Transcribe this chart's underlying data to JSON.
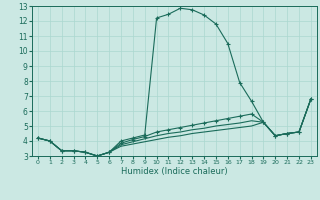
{
  "xlabel": "Humidex (Indice chaleur)",
  "background_color": "#cbe8e3",
  "line_color": "#1a6b5a",
  "grid_color": "#aad8d0",
  "xlim": [
    -0.5,
    23.5
  ],
  "ylim": [
    3,
    13
  ],
  "xticks": [
    0,
    1,
    2,
    3,
    4,
    5,
    6,
    7,
    8,
    9,
    10,
    11,
    12,
    13,
    14,
    15,
    16,
    17,
    18,
    19,
    20,
    21,
    22,
    23
  ],
  "yticks": [
    3,
    4,
    5,
    6,
    7,
    8,
    9,
    10,
    11,
    12,
    13
  ],
  "line1_x": [
    0,
    1,
    2,
    3,
    4,
    5,
    6,
    7,
    8,
    9,
    10,
    11,
    12,
    13,
    14,
    15,
    16,
    17,
    18,
    19,
    20,
    21,
    22,
    23
  ],
  "line1_y": [
    4.2,
    4.0,
    3.35,
    3.35,
    3.25,
    3.0,
    3.25,
    4.0,
    4.2,
    4.4,
    12.2,
    12.45,
    12.85,
    12.75,
    12.4,
    11.8,
    10.5,
    7.9,
    6.65,
    5.25,
    4.35,
    4.5,
    4.6,
    6.8
  ],
  "line2_x": [
    0,
    1,
    2,
    3,
    4,
    5,
    6,
    7,
    8,
    9,
    10,
    11,
    12,
    13,
    14,
    15,
    16,
    17,
    18,
    19,
    20,
    21,
    22,
    23
  ],
  "line2_y": [
    4.2,
    4.0,
    3.35,
    3.35,
    3.25,
    3.0,
    3.25,
    3.85,
    4.1,
    4.3,
    4.6,
    4.75,
    4.9,
    5.05,
    5.2,
    5.35,
    5.5,
    5.65,
    5.8,
    5.25,
    4.35,
    4.5,
    4.6,
    6.8
  ],
  "line3_x": [
    0,
    1,
    2,
    3,
    4,
    5,
    6,
    7,
    8,
    9,
    10,
    11,
    12,
    13,
    14,
    15,
    16,
    17,
    18,
    19,
    20,
    21,
    22,
    23
  ],
  "line3_y": [
    4.2,
    4.0,
    3.35,
    3.35,
    3.25,
    3.0,
    3.25,
    3.75,
    3.95,
    4.15,
    4.35,
    4.5,
    4.6,
    4.75,
    4.85,
    5.0,
    5.1,
    5.2,
    5.35,
    5.25,
    4.35,
    4.5,
    4.6,
    6.8
  ],
  "line4_x": [
    0,
    1,
    2,
    3,
    4,
    5,
    6,
    7,
    8,
    9,
    10,
    11,
    12,
    13,
    14,
    15,
    16,
    17,
    18,
    19,
    20,
    21,
    22,
    23
  ],
  "line4_y": [
    4.2,
    4.0,
    3.35,
    3.35,
    3.25,
    3.0,
    3.25,
    3.65,
    3.8,
    3.95,
    4.1,
    4.25,
    4.35,
    4.5,
    4.6,
    4.7,
    4.8,
    4.9,
    5.0,
    5.25,
    4.35,
    4.5,
    4.6,
    6.8
  ]
}
